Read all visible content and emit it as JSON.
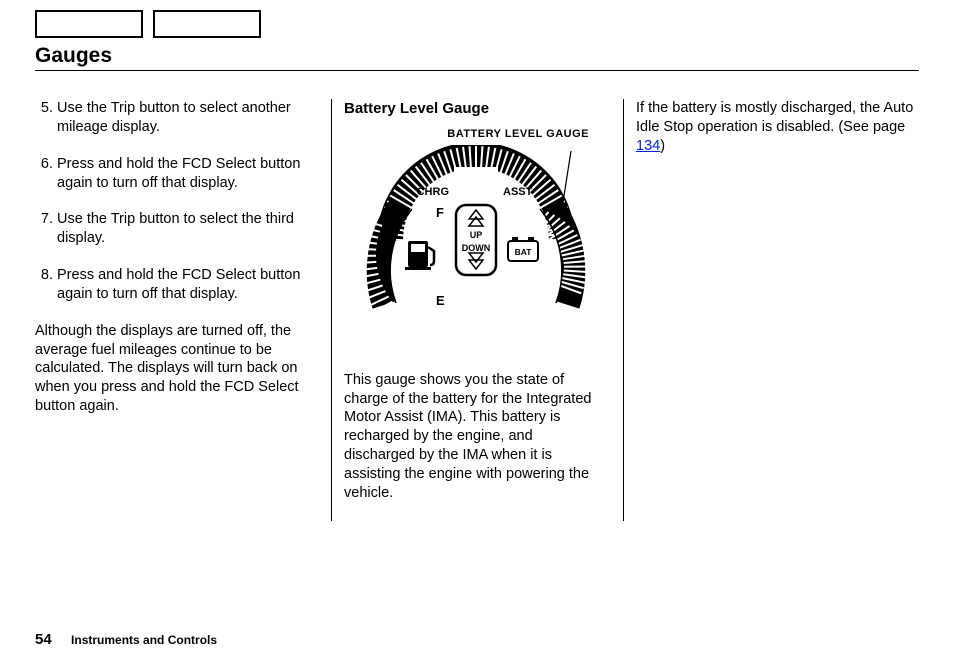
{
  "page_title": "Gauges",
  "col1": {
    "steps": [
      {
        "n": "5.",
        "t": "Use the Trip button to select another mileage display."
      },
      {
        "n": "6.",
        "t": "Press and hold the FCD Select button again to turn off that display."
      },
      {
        "n": "7.",
        "t": "Use the Trip button to select the third display."
      },
      {
        "n": "8.",
        "t": "Press and hold the FCD Select button again to turn off that display."
      }
    ],
    "para": "Although the displays are turned off, the average fuel mileages continue to be calculated. The displays will turn back on when you press and hold the FCD Select button again."
  },
  "col2": {
    "subhead": "Battery Level Gauge",
    "caption": "BATTERY LEVEL GAUGE",
    "gauge": {
      "labels": {
        "chrg": "CHRG",
        "asst": "ASST",
        "f": "F",
        "e": "E",
        "up": "UP",
        "down": "DOWN",
        "bat": "BAT"
      }
    },
    "para": "This gauge shows you the state of charge of the battery for the Integrated Motor Assist (IMA). This battery is recharged by the engine, and discharged by the IMA when it is assisting the engine with powering the vehicle."
  },
  "col3": {
    "para_pre": "If the battery is mostly discharged, the Auto Idle Stop operation is disabled. (See page ",
    "link": "134",
    "para_post": ")"
  },
  "footer": {
    "page_number": "54",
    "section": "Instruments and Controls"
  }
}
